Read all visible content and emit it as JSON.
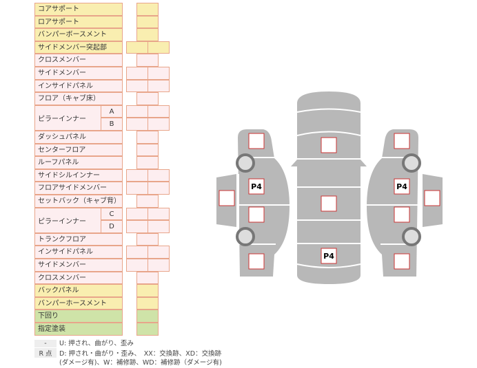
{
  "rows": [
    {
      "label": "コアサポート",
      "color": "y",
      "cells": 1
    },
    {
      "label": "ロアサポート",
      "color": "y",
      "cells": 1
    },
    {
      "label": "バンパーボースメント",
      "color": "y",
      "cells": 1
    },
    {
      "label": "サイドメンバー突起部",
      "color": "y",
      "cells": 2
    },
    {
      "label": "クロスメンバー",
      "color": "p",
      "cells": 1
    },
    {
      "label": "サイドメンバー",
      "color": "p",
      "cells": 2
    },
    {
      "label": "インサイドパネル",
      "color": "p",
      "cells": 2
    },
    {
      "label": "フロア（キャブ床）",
      "color": "p",
      "cells": 1
    },
    {
      "label": "ピラーインナー",
      "sub": "A",
      "color": "p",
      "cells": 2
    },
    {
      "label": "",
      "sub": "B",
      "color": "p",
      "cells": 2
    },
    {
      "label": "ダッシュパネル",
      "color": "p",
      "cells": 1
    },
    {
      "label": "センターフロア",
      "color": "p",
      "cells": 1
    },
    {
      "label": "ルーフパネル",
      "color": "p",
      "cells": 1
    },
    {
      "label": "サイドシルインナー",
      "color": "p",
      "cells": 2
    },
    {
      "label": "フロアサイドメンバー",
      "color": "p",
      "cells": 2
    },
    {
      "label": "セットバック（キャブ背）",
      "color": "p",
      "cells": 1
    },
    {
      "label": "ピラーインナー",
      "sub": "C",
      "color": "p",
      "cells": 2
    },
    {
      "label": "",
      "sub": "D",
      "color": "p",
      "cells": 2
    },
    {
      "label": "トランクフロア",
      "color": "p",
      "cells": 1
    },
    {
      "label": "インサイドパネル",
      "color": "p",
      "cells": 2
    },
    {
      "label": "サイドメンバー",
      "color": "p",
      "cells": 2
    },
    {
      "label": "クロスメンバー",
      "color": "p",
      "cells": 1
    },
    {
      "label": "バックパネル",
      "color": "y",
      "cells": 1
    },
    {
      "label": "バンパーホースメント",
      "color": "y",
      "cells": 1
    },
    {
      "label": "下回り",
      "color": "g",
      "cells": 1
    },
    {
      "label": "指定塗装",
      "color": "g",
      "cells": 1
    }
  ],
  "legend": [
    {
      "key": "-",
      "text": "U: 押され、曲がり、歪み"
    },
    {
      "key": "R 点",
      "text": "D: 押され・曲がり・歪み、　XX：交換跡、XD：交換跡"
    },
    {
      "key": "",
      "text": "(ダメージ有)、W：補修跡、WD：補修跡（ダメージ有)"
    }
  ],
  "diagram": {
    "marks": [
      {
        "id": "left-front",
        "label": ""
      },
      {
        "id": "left-door-front",
        "label": "P4"
      },
      {
        "id": "left-door-rear",
        "label": ""
      },
      {
        "id": "left-rear",
        "label": ""
      },
      {
        "id": "left-mirror",
        "label": ""
      },
      {
        "id": "hood",
        "label": ""
      },
      {
        "id": "roof",
        "label": ""
      },
      {
        "id": "trunk",
        "label": "P4"
      },
      {
        "id": "right-front",
        "label": ""
      },
      {
        "id": "right-door-front",
        "label": "P4"
      },
      {
        "id": "right-door-rear",
        "label": ""
      },
      {
        "id": "right-rear",
        "label": ""
      },
      {
        "id": "right-mirror",
        "label": ""
      }
    ]
  },
  "colors": {
    "yellow": "#f9eeb0",
    "pink": "#fdeef0",
    "green": "#cfe3a8",
    "border": "#e8a58a",
    "body": "#b8b8b8",
    "mark": "#cc3333"
  }
}
